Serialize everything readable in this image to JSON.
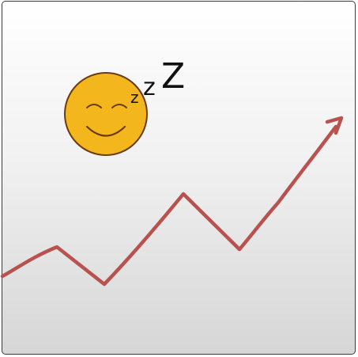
{
  "illustration": {
    "emoji": "sleeping-face",
    "emoji_color": "#F3B71D",
    "emoji_outline": "#6B3A12",
    "snore": [
      "z",
      "z",
      "Z"
    ],
    "trend": "upward",
    "line_color": "#B9524E"
  }
}
